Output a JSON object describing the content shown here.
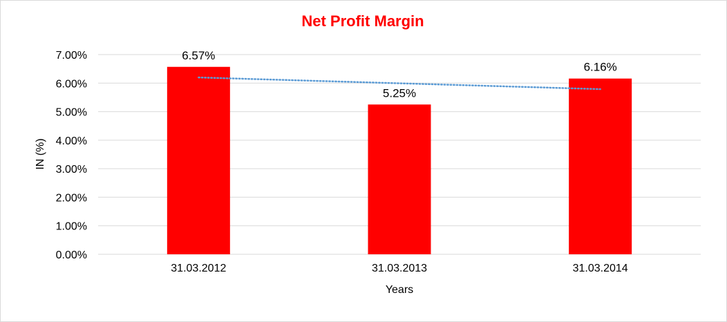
{
  "chart_data": {
    "type": "bar",
    "title": "Net Profit Margin",
    "xlabel": "Years",
    "ylabel": "IN (%)",
    "categories": [
      "31.03.2012",
      "31.03.2013",
      "31.03.2014"
    ],
    "values": [
      6.57,
      5.25,
      6.16
    ],
    "data_labels": [
      "6.57%",
      "5.25%",
      "6.16%"
    ],
    "ylim": [
      0,
      7
    ],
    "yticks": [
      0,
      1,
      2,
      3,
      4,
      5,
      6,
      7
    ],
    "ytick_labels": [
      "0.00%",
      "1.00%",
      "2.00%",
      "3.00%",
      "4.00%",
      "5.00%",
      "6.00%",
      "7.00%"
    ],
    "trendline": {
      "type": "linear",
      "style": "dotted"
    },
    "grid": true,
    "legend": "none",
    "colors": {
      "bar": "#ff0000",
      "title": "#ff0000",
      "trendline": "#5b9bd5",
      "grid": "#d9d9d9"
    }
  }
}
